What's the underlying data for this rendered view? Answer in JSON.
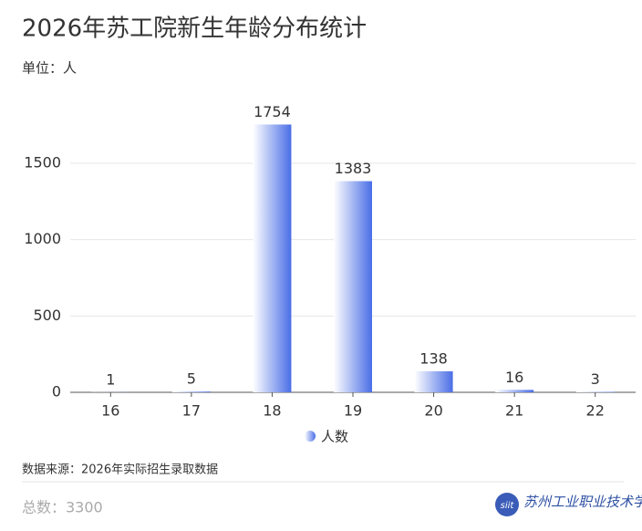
{
  "chart_data": {
    "type": "bar",
    "title": "2026年苏工院新生年龄分布统计",
    "subtitle": "单位：人",
    "categories": [
      "16",
      "17",
      "18",
      "19",
      "20",
      "21",
      "22"
    ],
    "series": [
      {
        "name": "人数",
        "color": "#4a6ee6",
        "values": [
          1,
          5,
          1754,
          1383,
          138,
          16,
          3
        ]
      }
    ],
    "ylim": [
      0,
      2000
    ],
    "yticks": [
      0,
      500,
      1000,
      1500
    ],
    "grid": true,
    "legend": "bottom",
    "source": "数据来源：2026年实际招生录取数据",
    "total": "总数：3300",
    "logo": "苏州工业职业技术学院"
  }
}
